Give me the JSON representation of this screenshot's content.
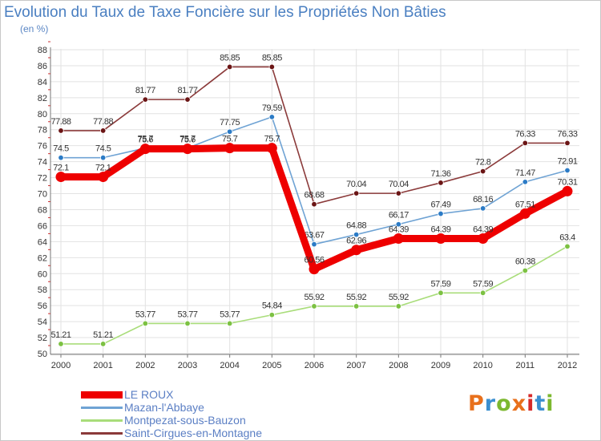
{
  "header": {
    "title": "Evolution du Taux de Taxe Foncière sur les Propriétés Non Bâties",
    "subtitle": "(en %)"
  },
  "brand": {
    "letters": [
      "P",
      "r",
      "o",
      "x",
      "i",
      "t",
      "i"
    ],
    "colors": [
      "#e8701c",
      "#3b8fd0",
      "#7cb82f",
      "#e8701c",
      "#d62a2a",
      "#3b8fd0",
      "#7cb82f"
    ]
  },
  "chart_data": {
    "type": "line",
    "title": "Evolution du Taux de Taxe Foncière sur les Propriétés Non Bâties",
    "ylabel": "(en %)",
    "xlabel": "",
    "categories": [
      "2000",
      "2001",
      "2002",
      "2003",
      "2004",
      "2005",
      "2006",
      "2007",
      "2008",
      "2009",
      "2010",
      "2011",
      "2012"
    ],
    "ylim": [
      50,
      88
    ],
    "ytick_step": 2,
    "grid": true,
    "legend_position": "bottom-left",
    "series": [
      {
        "name": "Saint-Cirgues-en-Montagne",
        "color": "#8b3a3a",
        "marker_color": "#6b1515",
        "weight": "thin",
        "values": [
          77.88,
          77.88,
          81.77,
          81.77,
          85.85,
          85.85,
          68.68,
          70.04,
          70.04,
          71.36,
          72.8,
          76.33,
          76.33
        ],
        "labels": [
          "77.88",
          "77.88",
          "81.77",
          "81.77",
          "85.85",
          "85.85",
          "68.68",
          "70.04",
          "70.04",
          "71.36",
          "72.8",
          "76.33",
          "76.33"
        ]
      },
      {
        "name": "Mazan-l'Abbaye",
        "color": "#6fa3d4",
        "marker_color": "#2b7bc6",
        "weight": "thin",
        "values": [
          74.5,
          74.5,
          75.7,
          75.7,
          77.75,
          79.59,
          63.67,
          64.88,
          66.17,
          67.49,
          68.16,
          71.47,
          72.91
        ],
        "labels": [
          "74.5",
          "74.5",
          "75.7",
          "75.7",
          "77.75",
          "79.59",
          "63.67",
          "64.88",
          "66.17",
          "67.49",
          "68.16",
          "71.47",
          "72.91"
        ]
      },
      {
        "name": "Montpezat-sous-Bauzon",
        "color": "#a9dd7a",
        "marker_color": "#7cc142",
        "weight": "thin",
        "values": [
          51.21,
          51.21,
          53.77,
          53.77,
          53.77,
          54.84,
          55.92,
          55.92,
          55.92,
          57.59,
          57.59,
          60.38,
          63.4
        ],
        "labels": [
          "51.21",
          "51.21",
          "53.77",
          "53.77",
          "53.77",
          "54.84",
          "55.92",
          "55.92",
          "55.92",
          "57.59",
          "57.59",
          "60.38",
          "63.4"
        ]
      },
      {
        "name": "LE ROUX",
        "color": "#ee0000",
        "marker_color": "#ee0000",
        "weight": "thick",
        "values": [
          72.1,
          72.1,
          75.6,
          75.6,
          75.7,
          75.7,
          60.56,
          62.96,
          64.39,
          64.39,
          64.39,
          67.51,
          70.31
        ],
        "labels": [
          "72.1",
          "72.1",
          "75.6",
          "75.6",
          "75.7",
          "75.7",
          "60.56",
          "62.96",
          "64.39",
          "64.39",
          "64.39",
          "67.51",
          "70.31"
        ]
      }
    ],
    "legend_order": [
      "LE ROUX",
      "Mazan-l'Abbaye",
      "Montpezat-sous-Bauzon",
      "Saint-Cirgues-en-Montagne"
    ]
  }
}
